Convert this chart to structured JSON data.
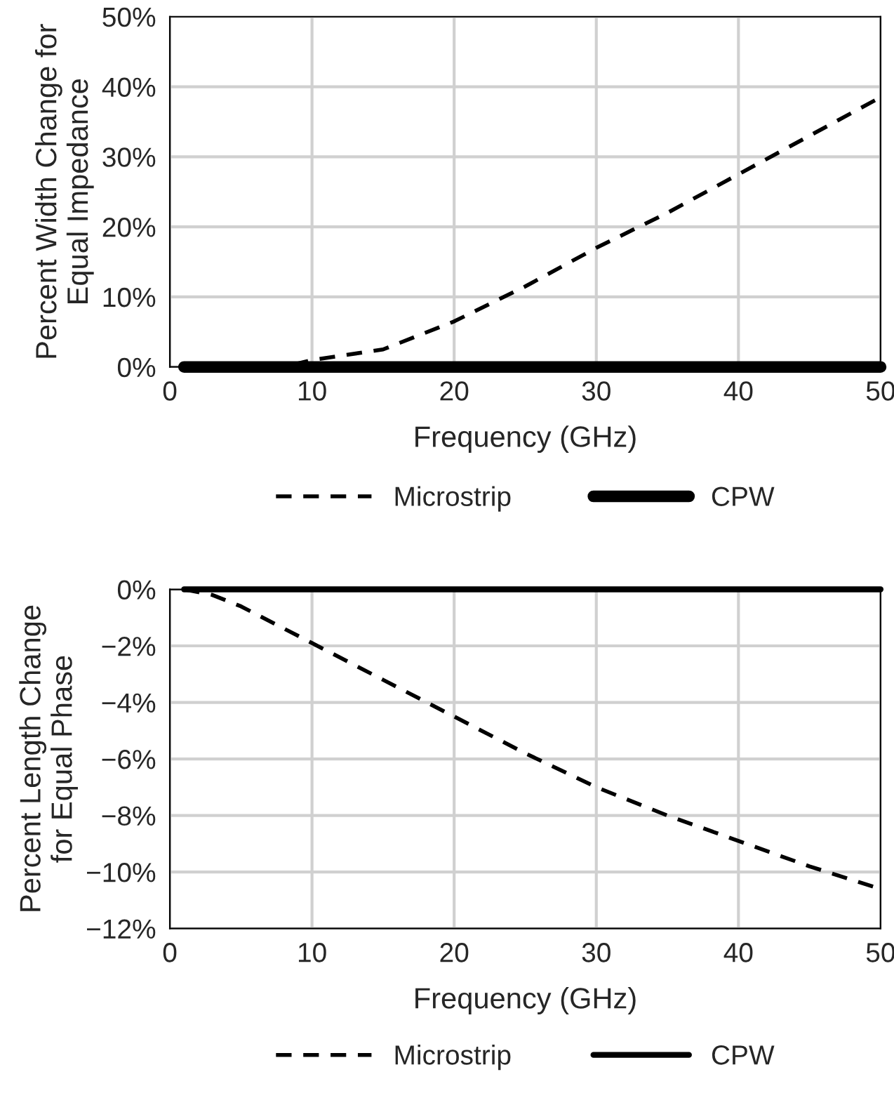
{
  "chart_data": [
    {
      "type": "line",
      "xlabel": "Frequency (GHz)",
      "ylabel": "Percent Width Change for\nEqual Impedance",
      "xlim": [
        0,
        50
      ],
      "xticks": [
        0,
        10,
        20,
        30,
        40,
        50
      ],
      "ylim": [
        0,
        50
      ],
      "yticks": [
        {
          "value": 0,
          "label": "0%"
        },
        {
          "value": 10,
          "label": "10%"
        },
        {
          "value": 20,
          "label": "20%"
        },
        {
          "value": 30,
          "label": "30%"
        },
        {
          "value": 40,
          "label": "40%"
        },
        {
          "value": 50,
          "label": "50%"
        }
      ],
      "grid": true,
      "legend": "bottom",
      "series": [
        {
          "name": "Microstrip",
          "color": "#000000",
          "line_style": "dashed",
          "x": [
            1,
            5,
            8,
            10,
            15,
            20,
            25,
            30,
            35,
            40,
            45,
            50
          ],
          "values": [
            0,
            0,
            0,
            1,
            2.5,
            6.5,
            11.5,
            17,
            22,
            27.5,
            33,
            38.5
          ]
        },
        {
          "name": "CPW",
          "color": "#000000",
          "line_style": "solid",
          "x": [
            1,
            50
          ],
          "values": [
            0,
            0
          ]
        }
      ]
    },
    {
      "type": "line",
      "xlabel": "Frequency (GHz)",
      "ylabel": "Percent Length Change\nfor Equal Phase",
      "xlim": [
        0,
        50
      ],
      "xticks": [
        0,
        10,
        20,
        30,
        40,
        50
      ],
      "ylim": [
        -12,
        0
      ],
      "yticks": [
        {
          "value": 0,
          "label": "0%"
        },
        {
          "value": -2,
          "label": "−2%"
        },
        {
          "value": -4,
          "label": "−4%"
        },
        {
          "value": -6,
          "label": "−6%"
        },
        {
          "value": -8,
          "label": "−8%"
        },
        {
          "value": -10,
          "label": "−10%"
        },
        {
          "value": -12,
          "label": "−12%"
        }
      ],
      "grid": true,
      "legend": "bottom",
      "series": [
        {
          "name": "Microstrip",
          "color": "#000000",
          "line_style": "dashed",
          "x": [
            1,
            3,
            5,
            10,
            15,
            20,
            25,
            30,
            35,
            40,
            45,
            50
          ],
          "values": [
            0,
            -0.2,
            -0.6,
            -1.9,
            -3.2,
            -4.5,
            -5.8,
            -7.0,
            -8.0,
            -8.9,
            -9.8,
            -10.6
          ]
        },
        {
          "name": "CPW",
          "color": "#000000",
          "line_style": "solid",
          "x": [
            1,
            50
          ],
          "values": [
            0,
            0
          ]
        }
      ]
    }
  ]
}
